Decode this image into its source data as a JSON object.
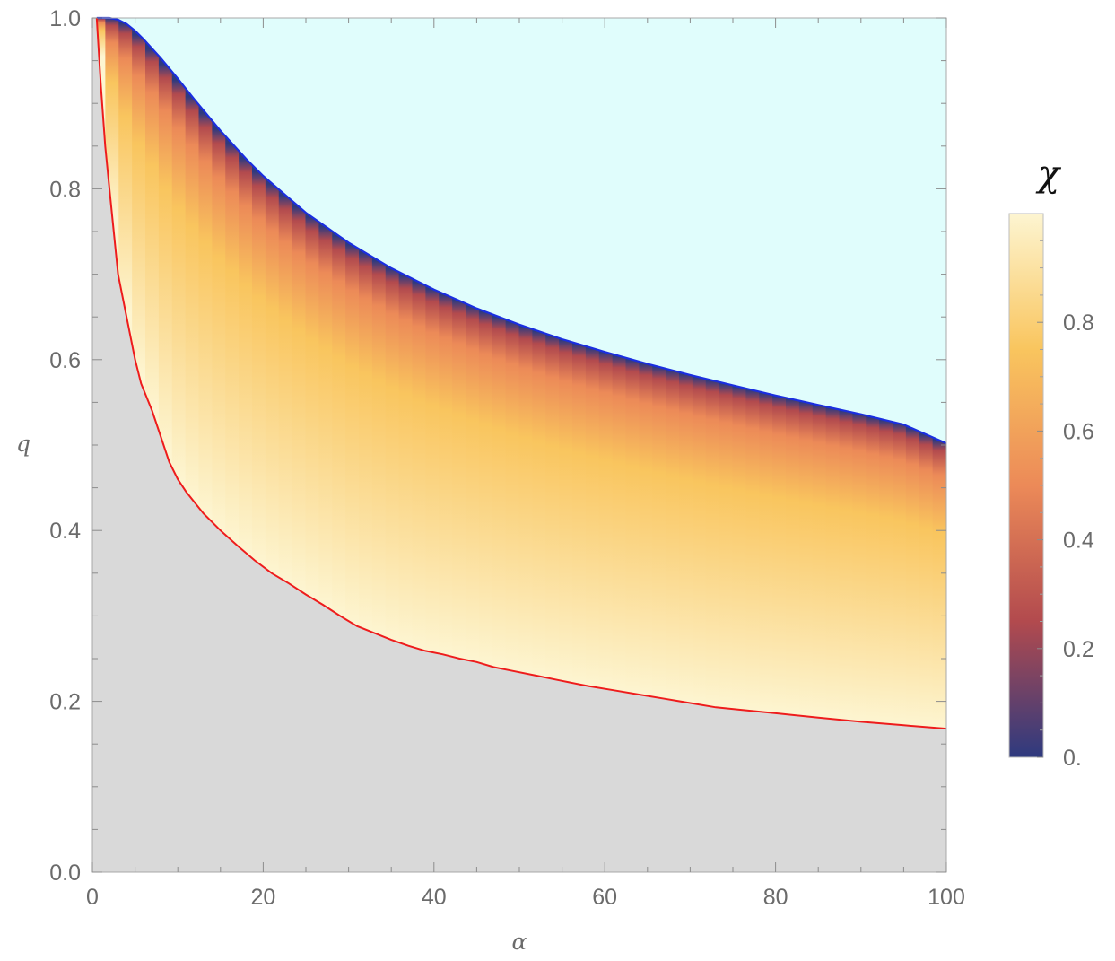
{
  "chart_data": {
    "type": "heatmap",
    "title": "",
    "xlabel": "α",
    "ylabel": "q",
    "xlim": [
      0,
      100
    ],
    "ylim": [
      0,
      1
    ],
    "x_ticks": [
      0,
      20,
      40,
      60,
      80,
      100
    ],
    "x_tick_labels": [
      "0",
      "20",
      "40",
      "60",
      "80",
      "100"
    ],
    "y_ticks": [
      0,
      0.2,
      0.4,
      0.6,
      0.8,
      1.0
    ],
    "y_tick_labels": [
      "0.0",
      "0.2",
      "0.4",
      "0.6",
      "0.8",
      "1.0"
    ],
    "colorbar": {
      "title": "χ",
      "range": [
        0,
        1
      ],
      "ticks": [
        0,
        0.2,
        0.4,
        0.6,
        0.8
      ],
      "tick_labels": [
        "0.",
        "0.2",
        "0.4",
        "0.6",
        "0.8"
      ],
      "colors": [
        "#2e3a7f",
        "#b24a4e",
        "#ec8a58",
        "#f9c55e",
        "#fdf5d1"
      ]
    },
    "regions": {
      "above_upper_boundary_color": "#e0fdfc",
      "below_lower_boundary_color": "#d9d9d9"
    },
    "series": [
      {
        "role": "upper boundary",
        "color": "#1a2ee0",
        "x": [
          0.5,
          1,
          2,
          3,
          4,
          5,
          6,
          8,
          10,
          12,
          15,
          18,
          20,
          25,
          30,
          35,
          40,
          45,
          50,
          55,
          60,
          65,
          70,
          75,
          80,
          85,
          90,
          95,
          100
        ],
        "y": [
          1.0,
          1.0,
          1.0,
          0.998,
          0.993,
          0.985,
          0.975,
          0.953,
          0.929,
          0.904,
          0.868,
          0.835,
          0.815,
          0.772,
          0.737,
          0.707,
          0.682,
          0.66,
          0.641,
          0.624,
          0.609,
          0.595,
          0.582,
          0.57,
          0.558,
          0.547,
          0.536,
          0.524,
          0.502
        ]
      },
      {
        "role": "lower boundary",
        "color": "#ee1c1c",
        "x": [
          0.5,
          1,
          1.5,
          2,
          3,
          4,
          5,
          5.7,
          7,
          8,
          9,
          10,
          11,
          13,
          15,
          17,
          19,
          21,
          23,
          25,
          27,
          29,
          31,
          33,
          35,
          37,
          39,
          41,
          43,
          45,
          47,
          49,
          52,
          55,
          58,
          61,
          64,
          67,
          70,
          73,
          76,
          80,
          85,
          90,
          95,
          100
        ],
        "y": [
          1.0,
          0.92,
          0.85,
          0.8,
          0.7,
          0.65,
          0.6,
          0.572,
          0.54,
          0.51,
          0.48,
          0.46,
          0.445,
          0.42,
          0.4,
          0.382,
          0.365,
          0.35,
          0.338,
          0.325,
          0.313,
          0.3,
          0.288,
          0.28,
          0.272,
          0.265,
          0.259,
          0.255,
          0.25,
          0.246,
          0.24,
          0.236,
          0.23,
          0.224,
          0.218,
          0.213,
          0.208,
          0.203,
          0.198,
          0.193,
          0.19,
          0.186,
          0.181,
          0.176,
          0.172,
          0.168
        ]
      }
    ]
  }
}
